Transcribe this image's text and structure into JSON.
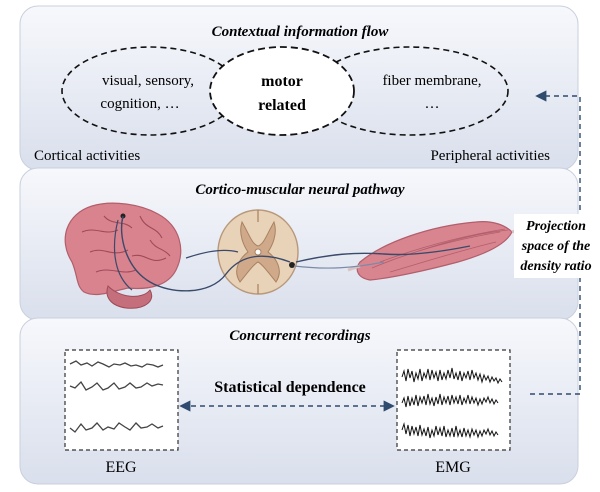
{
  "panels": {
    "top": {
      "title": "Contextual information flow",
      "left_ellipse": {
        "line1": "visual, sensory,",
        "line2": "cognition, …"
      },
      "center": {
        "line1": "motor",
        "line2": "related"
      },
      "right_ellipse": {
        "line1": "fiber membrane,",
        "line2": "…"
      },
      "bottom_left": "Cortical activities",
      "bottom_right": "Peripheral activities"
    },
    "middle": {
      "title": "Cortico-muscular neural pathway"
    },
    "bottom": {
      "title": "Concurrent recordings",
      "dependence": "Statistical dependence",
      "eeg_label": "EEG",
      "emg_label": "EMG"
    }
  },
  "side_label": {
    "line1": "Projection",
    "line2": "space of the",
    "line3": "density ratio"
  },
  "colors": {
    "panel_fill_top": "#f4f5fa",
    "panel_fill_bottom": "#dfe4ef",
    "arrow": "#2f4b6e",
    "brain": "#d9838f",
    "spinal": "#e8d2b8",
    "muscle": "#d98590"
  }
}
